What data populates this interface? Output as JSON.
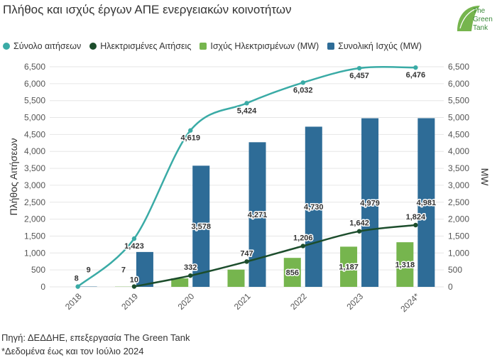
{
  "title": "Πλήθος και ισχύς έργων ΑΠΕ ενεργειακών κοινοτήτων",
  "logo": {
    "line1": "The",
    "line2": "Green",
    "line3": "Tank"
  },
  "source": "Πηγή: ΔΕΔΔΗΕ, επεξεργασία The Green Tank",
  "note": "*Δεδομένα έως και τον Ιούλιο 2024",
  "chart_data": {
    "type": "bar",
    "categories": [
      "2018",
      "2019",
      "2020",
      "2021",
      "2022",
      "2023",
      "2024*"
    ],
    "ylabel_left": "Πλήθος Αιτήσεων",
    "ylabel_right": "MW",
    "ylim_left": [
      0,
      6500
    ],
    "ylim_right": [
      0,
      6500
    ],
    "yticks_left": [
      "0",
      "500",
      "1,000",
      "1,500",
      "2,000",
      "2,500",
      "3,000",
      "3,500",
      "4,000",
      "4,500",
      "5,000",
      "5,500",
      "6,000",
      "6,500"
    ],
    "yticks_right": [
      "0",
      "500",
      "1,000",
      "1,500",
      "2,000",
      "2,500",
      "3,000",
      "3,500",
      "4,000",
      "4,500",
      "5,000",
      "5,500",
      "6,000",
      "6,500"
    ],
    "grid": true,
    "legend_position": "top-left",
    "series": [
      {
        "name": "Σύνολο αιτήσεων",
        "kind": "line",
        "axis": "left",
        "color": "#3aaba6",
        "values": [
          8,
          1423,
          4619,
          5424,
          6032,
          6457,
          6476
        ],
        "labels": [
          "8",
          "1,423",
          "4,619",
          "5,424",
          "6,032",
          "6,457",
          "6,476"
        ]
      },
      {
        "name": "Ηλεκτρισμένες Αιτήσεις",
        "kind": "line",
        "axis": "left",
        "color": "#1c4d2c",
        "values": [
          null,
          10,
          332,
          747,
          1206,
          1642,
          1824
        ],
        "labels": [
          "",
          "10",
          "332",
          "747",
          "1,206",
          "1,642",
          "1,824"
        ]
      },
      {
        "name": "Ισχύς Ηλεκτρισμένων (MW)",
        "kind": "bar",
        "axis": "right",
        "color": "#76b54e",
        "values": [
          0,
          7,
          250,
          510,
          856,
          1187,
          1318
        ],
        "labels": [
          "",
          "7",
          "",
          "",
          "856",
          "1,187",
          "1,318"
        ]
      },
      {
        "name": "Συνολική Ισχύς (MW)",
        "kind": "bar",
        "axis": "right",
        "color": "#2e6c97",
        "values": [
          9,
          1030,
          3578,
          4271,
          4730,
          4979,
          4981
        ],
        "labels": [
          "9",
          "",
          "3,578",
          "4,271",
          "4,730",
          "4,979",
          "4,981"
        ]
      }
    ]
  }
}
